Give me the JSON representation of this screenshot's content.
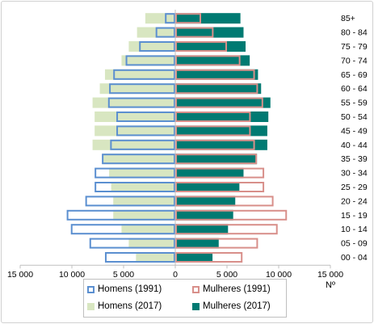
{
  "chart_data": {
    "type": "bar",
    "orientation": "horizontal",
    "subtype": "population-pyramid",
    "categories": [
      "00 - 04",
      "05 - 09",
      "10 - 14",
      "15 - 19",
      "20 - 24",
      "25 - 29",
      "30 - 34",
      "35 - 39",
      "40 - 44",
      "45 - 49",
      "50 - 54",
      "55 - 59",
      "60 - 64",
      "65 - 69",
      "70 - 74",
      "75 - 79",
      "80 - 84",
      "85+"
    ],
    "series": [
      {
        "name": "Homens (1991)",
        "side": "left",
        "style": "outline",
        "color": "#5b8fd0",
        "values": [
          6800,
          8300,
          10100,
          10500,
          8700,
          7800,
          7800,
          7100,
          6300,
          5700,
          5700,
          6500,
          6400,
          6000,
          4800,
          3500,
          1900,
          1000
        ]
      },
      {
        "name": "Mulheres (1991)",
        "side": "right",
        "style": "outline",
        "color": "#d88f8a",
        "values": [
          6500,
          8000,
          9900,
          10800,
          9500,
          8600,
          8600,
          7900,
          7700,
          7300,
          7300,
          8500,
          8000,
          7700,
          6300,
          5000,
          3700,
          2500
        ]
      },
      {
        "name": "Homens (2017)",
        "side": "left",
        "style": "fill",
        "color": "#d8e6c1",
        "values": [
          3800,
          4500,
          5200,
          6000,
          6000,
          6200,
          6400,
          7000,
          8000,
          7800,
          7800,
          8000,
          7300,
          6800,
          5200,
          4500,
          3700,
          2900
        ]
      },
      {
        "name": "Mulheres (2017)",
        "side": "right",
        "style": "fill",
        "color": "#007a72",
        "values": [
          3600,
          4200,
          5100,
          5600,
          5800,
          6200,
          6600,
          7900,
          8900,
          8900,
          9000,
          9200,
          8300,
          8000,
          7200,
          6800,
          6600,
          6300
        ]
      }
    ],
    "xlim": [
      -15000,
      15000
    ],
    "x_ticks": [
      -15000,
      -10000,
      -5000,
      0,
      5000,
      10000,
      15000
    ],
    "x_tick_labels": [
      "15 000",
      "10 000",
      "5 000",
      "0",
      "5 000",
      "10 000",
      "15 000"
    ],
    "xlabel": "Nº",
    "grid": false,
    "legend_position": "bottom"
  },
  "legend": {
    "homens_1991": "Homens (1991)",
    "mulheres_1991": "Mulheres (1991)",
    "homens_2017": "Homens (2017)",
    "mulheres_2017": "Mulheres (2017)"
  }
}
